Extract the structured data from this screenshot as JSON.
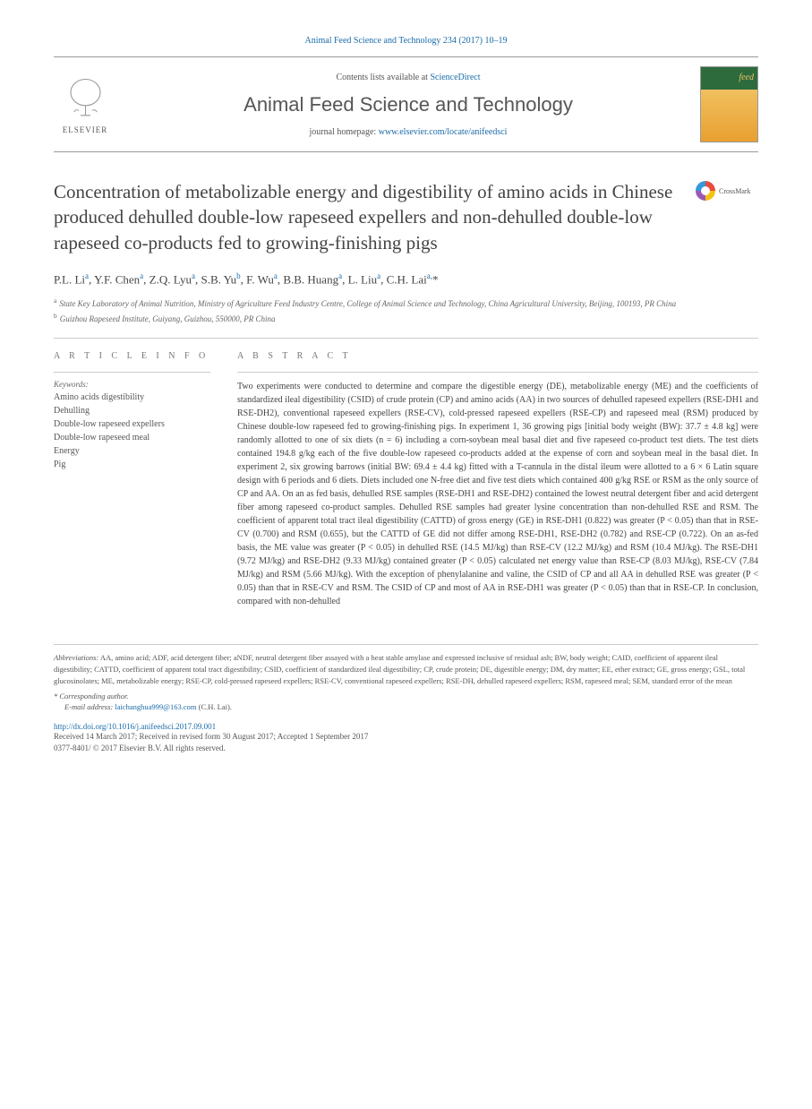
{
  "citation": "Animal Feed Science and Technology 234 (2017) 10–19",
  "header": {
    "elsevier_label": "ELSEVIER",
    "contents_prefix": "Contents lists available at ",
    "contents_link": "ScienceDirect",
    "journal_name": "Animal Feed Science and Technology",
    "homepage_prefix": "journal homepage: ",
    "homepage_url": "www.elsevier.com/locate/anifeedsci"
  },
  "crossmark_label": "CrossMark",
  "title": "Concentration of metabolizable energy and digestibility of amino acids in Chinese produced dehulled double-low rapeseed expellers and non-dehulled double-low rapeseed co-products fed to growing-finishing pigs",
  "authors_html": "P.L. Li<sup>a</sup>, Y.F. Chen<sup>a</sup>, Z.Q. Lyu<sup>a</sup>, S.B. Yu<sup>b</sup>, F. Wu<sup>a</sup>, B.B. Huang<sup>a</sup>, L. Liu<sup>a</sup>, C.H. Lai<sup>a,</sup>*",
  "affiliations": [
    {
      "sup": "a",
      "text": "State Key Laboratory of Animal Nutrition, Ministry of Agriculture Feed Industry Centre, College of Animal Science and Technology, China Agricultural University, Beijing, 100193, PR China"
    },
    {
      "sup": "b",
      "text": "Guizhou Rapeseed Institute, Guiyang, Guizhou, 550000, PR China"
    }
  ],
  "article_info_heading": "A R T I C L E  I N F O",
  "abstract_heading": "A B S T R A C T",
  "keywords_label": "Keywords:",
  "keywords": [
    "Amino acids digestibility",
    "Dehulling",
    "Double-low rapeseed expellers",
    "Double-low rapeseed meal",
    "Energy",
    "Pig"
  ],
  "abstract": "Two experiments were conducted to determine and compare the digestible energy (DE), metabolizable energy (ME) and the coefficients of standardized ileal digestibility (CSID) of crude protein (CP) and amino acids (AA) in two sources of dehulled rapeseed expellers (RSE-DH1 and RSE-DH2), conventional rapeseed expellers (RSE-CV), cold-pressed rapeseed expellers (RSE-CP) and rapeseed meal (RSM) produced by Chinese double-low rapeseed fed to growing-finishing pigs. In experiment 1, 36 growing pigs [initial body weight (BW): 37.7 ± 4.8 kg] were randomly allotted to one of six diets (n = 6) including a corn-soybean meal basal diet and five rapeseed co-product test diets. The test diets contained 194.8 g/kg each of the five double-low rapeseed co-products added at the expense of corn and soybean meal in the basal diet. In experiment 2, six growing barrows (initial BW: 69.4 ± 4.4 kg) fitted with a T-cannula in the distal ileum were allotted to a 6 × 6 Latin square design with 6 periods and 6 diets. Diets included one N-free diet and five test diets which contained 400 g/kg RSE or RSM as the only source of CP and AA. On an as fed basis, dehulled RSE samples (RSE-DH1 and RSE-DH2) contained the lowest neutral detergent fiber and acid detergent fiber among rapeseed co-product samples. Dehulled RSE samples had greater lysine concentration than non-dehulled RSE and RSM. The coefficient of apparent total tract ileal digestibility (CATTD) of gross energy (GE) in RSE-DH1 (0.822) was greater (P < 0.05) than that in RSE-CV (0.700) and RSM (0.655), but the CATTD of GE did not differ among RSE-DH1, RSE-DH2 (0.782) and RSE-CP (0.722). On an as-fed basis, the ME value was greater (P < 0.05) in dehulled RSE (14.5 MJ/kg) than RSE-CV (12.2 MJ/kg) and RSM (10.4 MJ/kg). The RSE-DH1 (9.72 MJ/kg) and RSE-DH2 (9.33 MJ/kg) contained greater (P < 0.05) calculated net energy value than RSE-CP (8.03 MJ/kg), RSE-CV (7.84 MJ/kg) and RSM (5.66 MJ/kg). With the exception of phenylalanine and valine, the CSID of CP and all AA in dehulled RSE was greater (P < 0.05) than that in RSE-CV and RSM. The CSID of CP and most of AA in RSE-DH1 was greater (P < 0.05) than that in RSE-CP. In conclusion, compared with non-dehulled",
  "footnotes": {
    "abbrev_label": "Abbreviations:",
    "abbrev_text": " AA, amino acid; ADF, acid detergent fiber; aNDF, neutral detergent fiber assayed with a heat stable amylase and expressed inclusive of residual ash; BW, body weight; CAID, coefficient of apparent ileal digestibility; CATTD, coefficient of apparent total tract digestibility; CSID, coefficient of standardized ileal digestibility; CP, crude protein; DE, digestible energy; DM, dry matter; EE, ether extract; GE, gross energy; GSL, total glucosinolates; ME, metabolizable energy; RSE-CP, cold-pressed rapeseed expellers; RSE-CV, conventional rapeseed expellers; RSE-DH, dehulled rapeseed expellers; RSM, rapeseed meal; SEM, standard error of the mean",
    "corr_label": "* Corresponding author.",
    "email_label": "E-mail address: ",
    "email": "laichanghua999@163.com",
    "email_suffix": " (C.H. Lai)."
  },
  "doi": "http://dx.doi.org/10.1016/j.anifeedsci.2017.09.001",
  "received": "Received 14 March 2017; Received in revised form 30 August 2017; Accepted 1 September 2017",
  "copyright": "0377-8401/ © 2017 Elsevier B.V. All rights reserved."
}
